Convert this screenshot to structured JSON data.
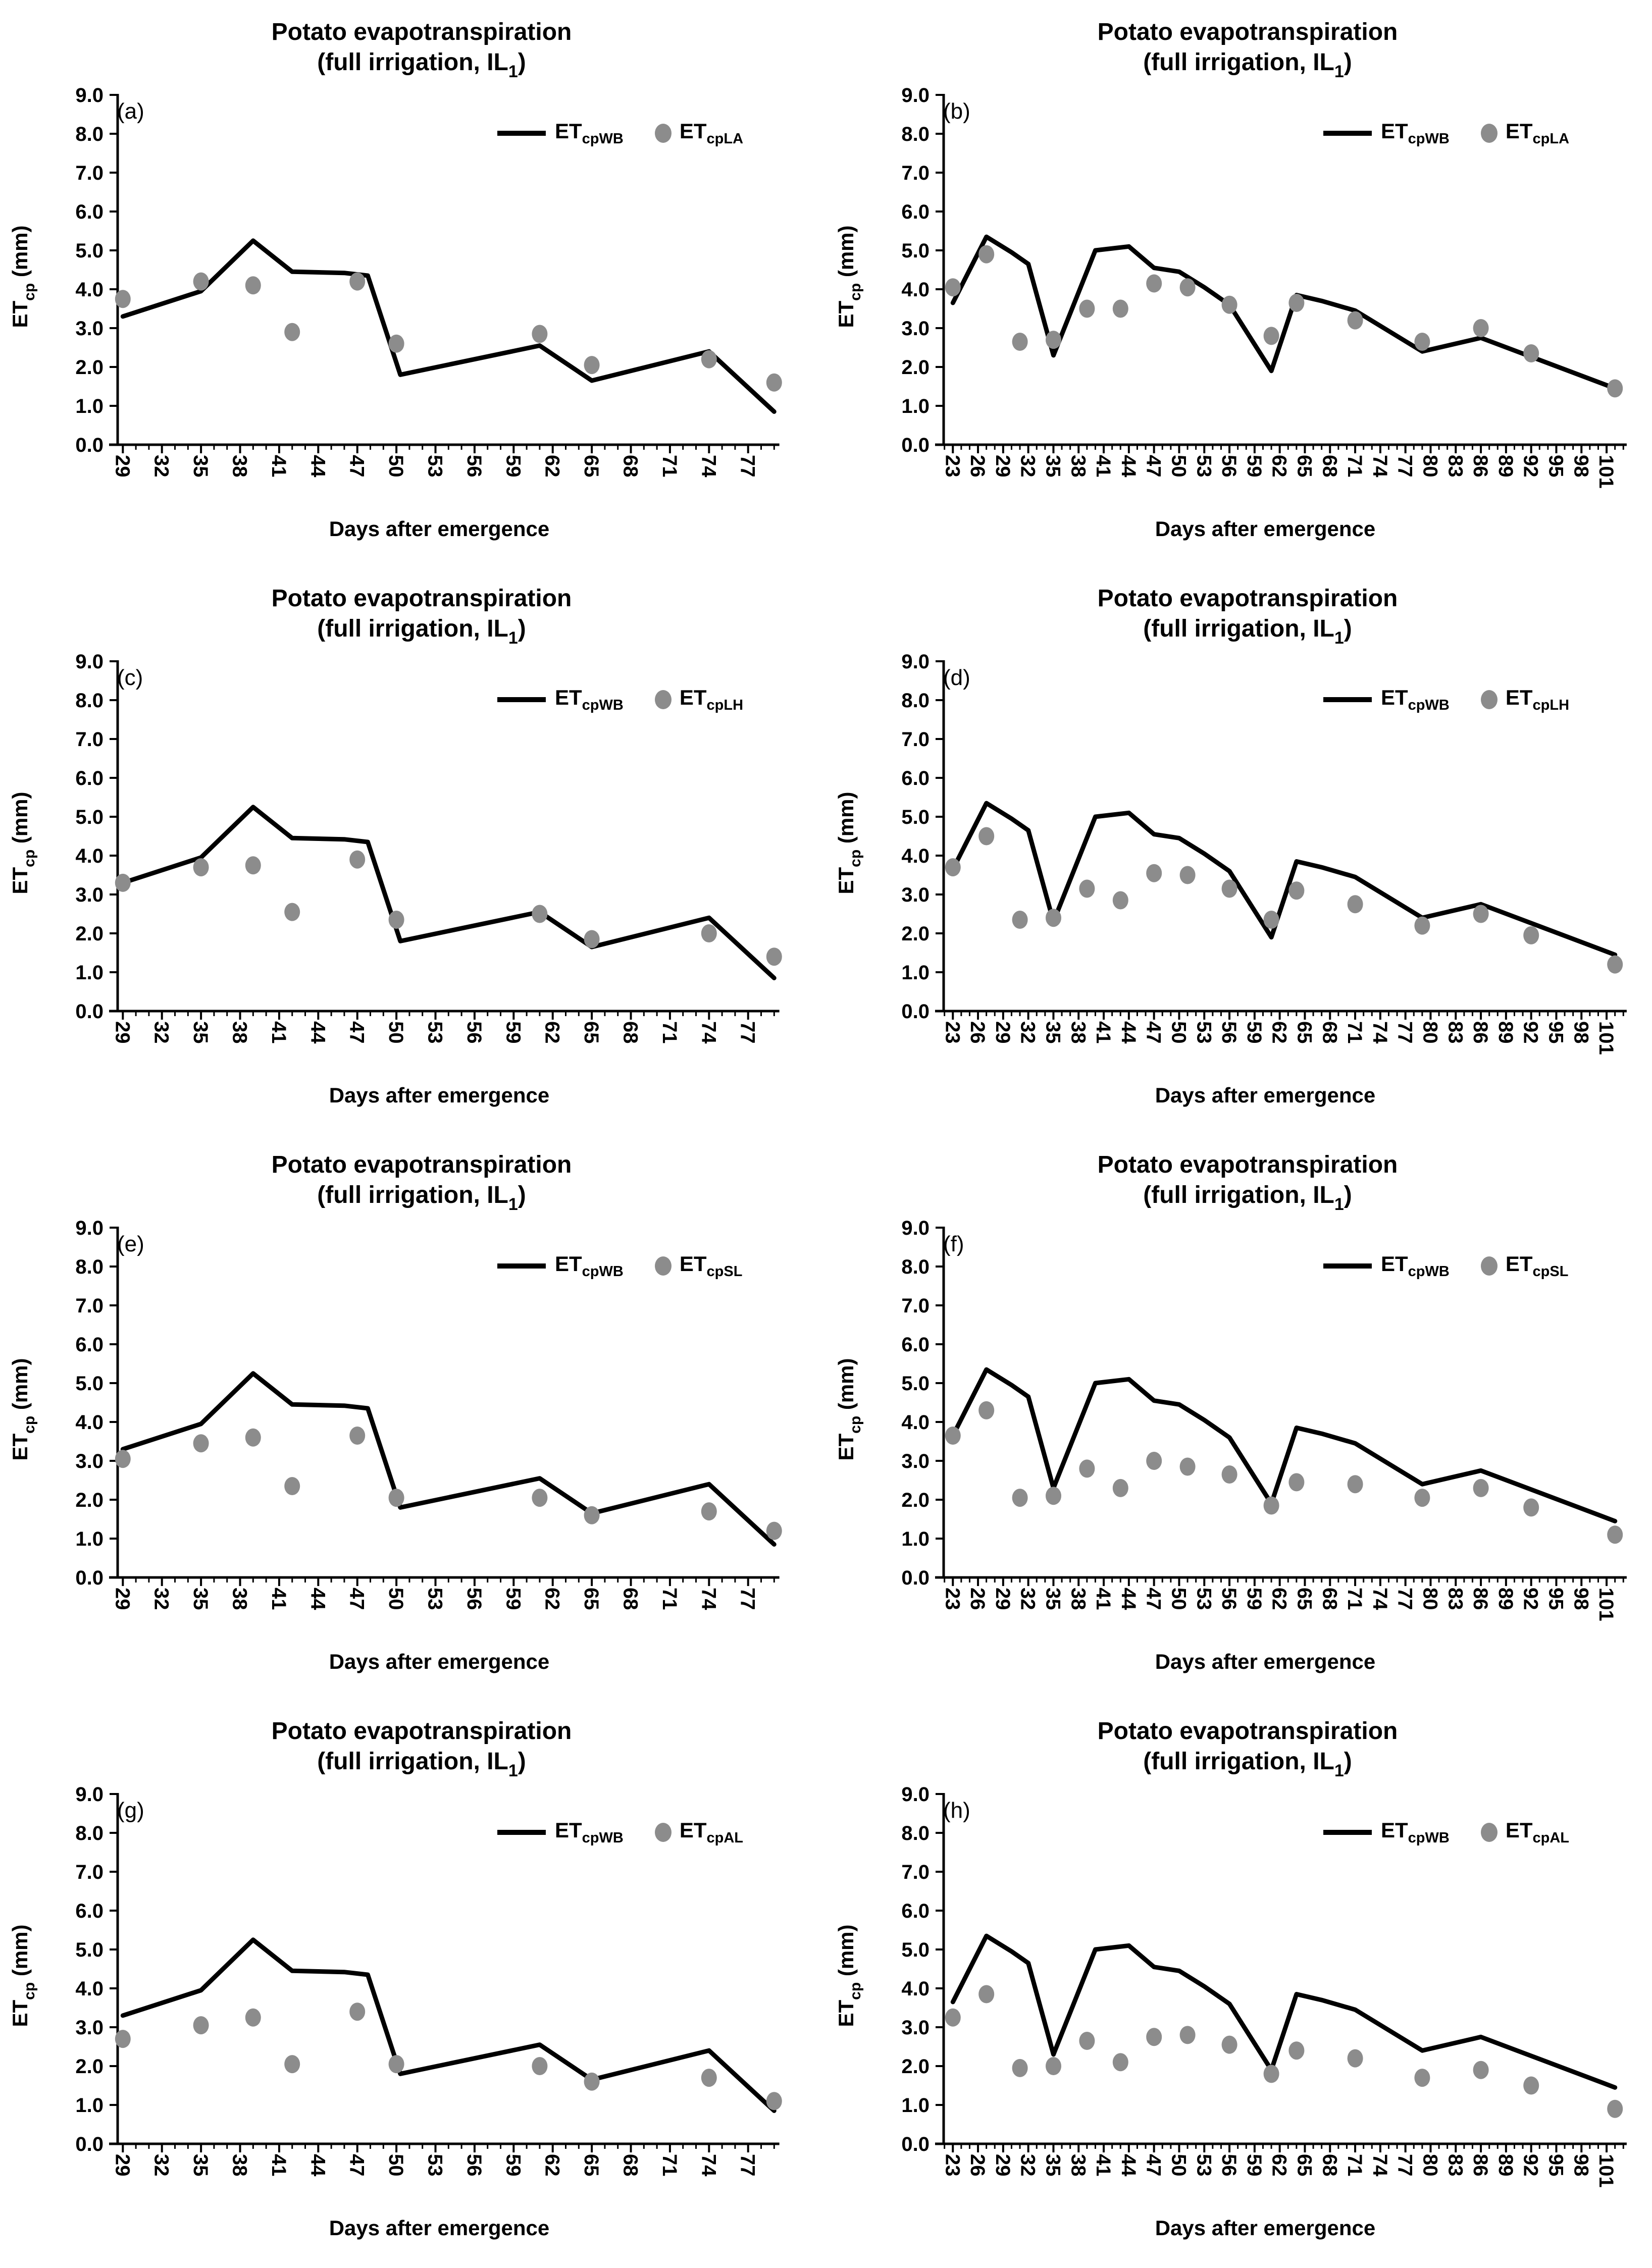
{
  "figure": {
    "background": "#ffffff",
    "rows": 4,
    "cols": 2
  },
  "shared": {
    "title_line1": "Potato evapotranspiration",
    "title_line2_pre": "(full irrigation, IL",
    "title_line2_sub": "1",
    "title_line2_post": ")",
    "y_axis_title_pre": "ET",
    "y_axis_title_sub": "cp",
    "y_axis_title_post": " (mm)",
    "x_axis_title": "Days after emergence",
    "series_prefix": "ET",
    "line_series_sub": "cpWB",
    "ylim": [
      0,
      9
    ],
    "yticks": [
      0,
      1,
      2,
      3,
      4,
      5,
      6,
      7,
      8,
      9
    ],
    "ytick_format_decimals": 1,
    "grid": "off",
    "legend_position": "top-right-inside",
    "colors": {
      "line": "#000000",
      "dot": "#8c8c8c",
      "axis": "#000000",
      "text": "#000000",
      "background": "#ffffff"
    }
  },
  "chart_data": [
    {
      "panel": "(a)",
      "type": "line+scatter",
      "dot_series_sub": "cpLA",
      "xlim": [
        28.6,
        79.4
      ],
      "xticks": [
        29,
        32,
        35,
        38,
        41,
        44,
        47,
        50,
        53,
        56,
        59,
        62,
        65,
        68,
        71,
        74,
        77
      ],
      "line": {
        "x": [
          29,
          35,
          39,
          42,
          46,
          47.8,
          50.3,
          61,
          65,
          74,
          79
        ],
        "y": [
          3.3,
          3.95,
          5.25,
          4.45,
          4.42,
          4.35,
          1.8,
          2.55,
          1.65,
          2.4,
          0.85
        ]
      },
      "dots": {
        "x": [
          29,
          35,
          39,
          42,
          47,
          50,
          61,
          65,
          74,
          79
        ],
        "y": [
          3.75,
          4.2,
          4.1,
          2.9,
          4.2,
          2.6,
          2.85,
          2.05,
          2.2,
          1.6
        ]
      }
    },
    {
      "panel": "(b)",
      "type": "line+scatter",
      "dot_series_sub": "cpLA",
      "xlim": [
        21.9,
        103.4
      ],
      "xticks": [
        23,
        26,
        29,
        32,
        35,
        38,
        41,
        44,
        47,
        50,
        53,
        56,
        59,
        62,
        65,
        68,
        71,
        74,
        77,
        80,
        83,
        86,
        89,
        92,
        95,
        98,
        101
      ],
      "line": {
        "x": [
          23,
          27,
          30,
          32,
          35,
          40,
          44,
          47,
          50,
          53,
          56,
          61,
          64,
          67,
          71,
          79,
          86,
          102
        ],
        "y": [
          3.65,
          5.35,
          4.95,
          4.65,
          2.3,
          5.0,
          5.1,
          4.55,
          4.45,
          4.05,
          3.6,
          1.9,
          3.85,
          3.7,
          3.45,
          2.4,
          2.75,
          1.45
        ]
      },
      "dots": {
        "x": [
          23,
          27,
          31,
          35,
          39,
          43,
          47,
          51,
          56,
          61,
          64,
          71,
          79,
          86,
          92,
          102
        ],
        "y": [
          4.05,
          4.9,
          2.65,
          2.7,
          3.5,
          3.5,
          4.15,
          4.05,
          3.6,
          2.8,
          3.65,
          3.2,
          2.65,
          3.0,
          2.35,
          1.45
        ]
      }
    },
    {
      "panel": "(c)",
      "type": "line+scatter",
      "dot_series_sub": "cpLH",
      "xlim": [
        28.6,
        79.4
      ],
      "xticks": [
        29,
        32,
        35,
        38,
        41,
        44,
        47,
        50,
        53,
        56,
        59,
        62,
        65,
        68,
        71,
        74,
        77
      ],
      "line": {
        "x": [
          29,
          35,
          39,
          42,
          46,
          47.8,
          50.3,
          61,
          65,
          74,
          79
        ],
        "y": [
          3.3,
          3.95,
          5.25,
          4.45,
          4.42,
          4.35,
          1.8,
          2.55,
          1.65,
          2.4,
          0.85
        ]
      },
      "dots": {
        "x": [
          29,
          35,
          39,
          42,
          47,
          50,
          61,
          65,
          74,
          79
        ],
        "y": [
          3.3,
          3.7,
          3.75,
          2.55,
          3.9,
          2.35,
          2.5,
          1.85,
          2.0,
          1.4
        ]
      }
    },
    {
      "panel": "(d)",
      "type": "line+scatter",
      "dot_series_sub": "cpLH",
      "xlim": [
        21.9,
        103.4
      ],
      "xticks": [
        23,
        26,
        29,
        32,
        35,
        38,
        41,
        44,
        47,
        50,
        53,
        56,
        59,
        62,
        65,
        68,
        71,
        74,
        77,
        80,
        83,
        86,
        89,
        92,
        95,
        98,
        101
      ],
      "line": {
        "x": [
          23,
          27,
          30,
          32,
          35,
          40,
          44,
          47,
          50,
          53,
          56,
          61,
          64,
          67,
          71,
          79,
          86,
          102
        ],
        "y": [
          3.65,
          5.35,
          4.95,
          4.65,
          2.3,
          5.0,
          5.1,
          4.55,
          4.45,
          4.05,
          3.6,
          1.9,
          3.85,
          3.7,
          3.45,
          2.4,
          2.75,
          1.45
        ]
      },
      "dots": {
        "x": [
          23,
          27,
          31,
          35,
          39,
          43,
          47,
          51,
          56,
          61,
          64,
          71,
          79,
          86,
          92,
          102
        ],
        "y": [
          3.7,
          4.5,
          2.35,
          2.4,
          3.15,
          2.85,
          3.55,
          3.5,
          3.15,
          2.35,
          3.1,
          2.75,
          2.2,
          2.5,
          1.95,
          1.2
        ]
      }
    },
    {
      "panel": "(e)",
      "type": "line+scatter",
      "dot_series_sub": "cpSL",
      "xlim": [
        28.6,
        79.4
      ],
      "xticks": [
        29,
        32,
        35,
        38,
        41,
        44,
        47,
        50,
        53,
        56,
        59,
        62,
        65,
        68,
        71,
        74,
        77
      ],
      "line": {
        "x": [
          29,
          35,
          39,
          42,
          46,
          47.8,
          50.3,
          61,
          65,
          74,
          79
        ],
        "y": [
          3.3,
          3.95,
          5.25,
          4.45,
          4.42,
          4.35,
          1.8,
          2.55,
          1.65,
          2.4,
          0.85
        ]
      },
      "dots": {
        "x": [
          29,
          35,
          39,
          42,
          47,
          50,
          61,
          65,
          74,
          79
        ],
        "y": [
          3.05,
          3.45,
          3.6,
          2.35,
          3.65,
          2.05,
          2.05,
          1.6,
          1.7,
          1.2
        ]
      }
    },
    {
      "panel": "(f)",
      "type": "line+scatter",
      "dot_series_sub": "cpSL",
      "xlim": [
        21.9,
        103.4
      ],
      "xticks": [
        23,
        26,
        29,
        32,
        35,
        38,
        41,
        44,
        47,
        50,
        53,
        56,
        59,
        62,
        65,
        68,
        71,
        74,
        77,
        80,
        83,
        86,
        89,
        92,
        95,
        98,
        101
      ],
      "line": {
        "x": [
          23,
          27,
          30,
          32,
          35,
          40,
          44,
          47,
          50,
          53,
          56,
          61,
          64,
          67,
          71,
          79,
          86,
          102
        ],
        "y": [
          3.65,
          5.35,
          4.95,
          4.65,
          2.3,
          5.0,
          5.1,
          4.55,
          4.45,
          4.05,
          3.6,
          1.9,
          3.85,
          3.7,
          3.45,
          2.4,
          2.75,
          1.45
        ]
      },
      "dots": {
        "x": [
          23,
          27,
          31,
          35,
          39,
          43,
          47,
          51,
          56,
          61,
          64,
          71,
          79,
          86,
          92,
          102
        ],
        "y": [
          3.65,
          4.3,
          2.05,
          2.1,
          2.8,
          2.3,
          3.0,
          2.85,
          2.65,
          1.85,
          2.45,
          2.4,
          2.05,
          2.3,
          1.8,
          1.1
        ]
      }
    },
    {
      "panel": "(g)",
      "type": "line+scatter",
      "dot_series_sub": "cpAL",
      "xlim": [
        28.6,
        79.4
      ],
      "xticks": [
        29,
        32,
        35,
        38,
        41,
        44,
        47,
        50,
        53,
        56,
        59,
        62,
        65,
        68,
        71,
        74,
        77
      ],
      "line": {
        "x": [
          29,
          35,
          39,
          42,
          46,
          47.8,
          50.3,
          61,
          65,
          74,
          79
        ],
        "y": [
          3.3,
          3.95,
          5.25,
          4.45,
          4.42,
          4.35,
          1.8,
          2.55,
          1.65,
          2.4,
          0.85
        ]
      },
      "dots": {
        "x": [
          29,
          35,
          39,
          42,
          47,
          50,
          61,
          65,
          74,
          79
        ],
        "y": [
          2.7,
          3.05,
          3.25,
          2.05,
          3.4,
          2.05,
          2.0,
          1.6,
          1.7,
          1.1
        ]
      }
    },
    {
      "panel": "(h)",
      "type": "line+scatter",
      "dot_series_sub": "cpAL",
      "xlim": [
        21.9,
        103.4
      ],
      "xticks": [
        23,
        26,
        29,
        32,
        35,
        38,
        41,
        44,
        47,
        50,
        53,
        56,
        59,
        62,
        65,
        68,
        71,
        74,
        77,
        80,
        83,
        86,
        89,
        92,
        95,
        98,
        101
      ],
      "line": {
        "x": [
          23,
          27,
          30,
          32,
          35,
          40,
          44,
          47,
          50,
          53,
          56,
          61,
          64,
          67,
          71,
          79,
          86,
          102
        ],
        "y": [
          3.65,
          5.35,
          4.95,
          4.65,
          2.3,
          5.0,
          5.1,
          4.55,
          4.45,
          4.05,
          3.6,
          1.9,
          3.85,
          3.7,
          3.45,
          2.4,
          2.75,
          1.45
        ]
      },
      "dots": {
        "x": [
          23,
          27,
          31,
          35,
          39,
          43,
          47,
          51,
          56,
          61,
          64,
          71,
          79,
          86,
          92,
          102
        ],
        "y": [
          3.25,
          3.85,
          1.95,
          2.0,
          2.65,
          2.1,
          2.75,
          2.8,
          2.55,
          1.8,
          2.4,
          2.2,
          1.7,
          1.9,
          1.5,
          0.9
        ]
      }
    }
  ]
}
